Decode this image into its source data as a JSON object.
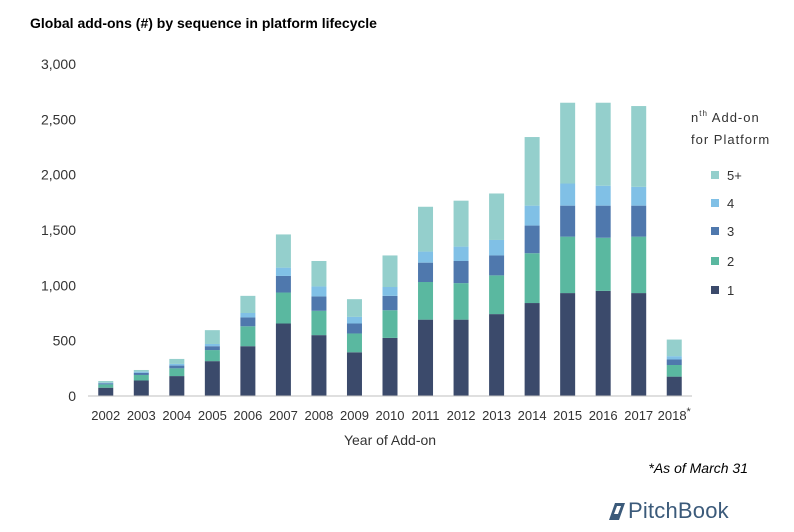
{
  "title": "Global add-ons (#) by sequence in platform lifecycle",
  "footnote": "*As of March 31",
  "brand": "PitchBook",
  "colors": {
    "1": "#3b4a6b",
    "2": "#5ab8a0",
    "3": "#4f78ad",
    "4": "#80c0e6",
    "5+": "#94cfcc"
  },
  "chart_data": {
    "type": "bar",
    "stacked": true,
    "categories": [
      "2002",
      "2003",
      "2004",
      "2005",
      "2006",
      "2007",
      "2008",
      "2009",
      "2010",
      "2011",
      "2012",
      "2013",
      "2014",
      "2015",
      "2016",
      "2017",
      "2018*"
    ],
    "series": [
      {
        "name": "1",
        "values": [
          75,
          140,
          180,
          315,
          450,
          655,
          550,
          395,
          525,
          690,
          690,
          740,
          840,
          930,
          950,
          930,
          175
        ]
      },
      {
        "name": "2",
        "values": [
          30,
          50,
          70,
          100,
          180,
          280,
          220,
          170,
          250,
          340,
          330,
          350,
          450,
          510,
          480,
          510,
          105
        ]
      },
      {
        "name": "3",
        "values": [
          10,
          20,
          25,
          35,
          80,
          150,
          130,
          90,
          130,
          175,
          200,
          180,
          250,
          280,
          290,
          280,
          50
        ]
      },
      {
        "name": "4",
        "values": [
          5,
          10,
          15,
          20,
          40,
          75,
          90,
          60,
          80,
          100,
          130,
          140,
          180,
          200,
          180,
          170,
          30
        ]
      },
      {
        "name": "5+",
        "values": [
          15,
          15,
          45,
          125,
          155,
          300,
          230,
          160,
          285,
          405,
          415,
          420,
          620,
          730,
          750,
          730,
          150
        ]
      }
    ],
    "xlabel": "Year of Add-on",
    "ylabel": "",
    "ylim": [
      0,
      3000
    ],
    "yticks": [
      0,
      500,
      1000,
      1500,
      2000,
      2500,
      3000
    ],
    "ytick_labels": [
      "0",
      "500",
      "1,000",
      "1,500",
      "2,000",
      "2,500",
      "3,000"
    ],
    "grid": false,
    "legend": {
      "title_base": "n",
      "title_sup": "th",
      "title_rest": " Add-on",
      "title_line2": "for Platform",
      "placement": "right",
      "order": [
        "5+",
        "4",
        "3",
        "2",
        "1"
      ]
    }
  }
}
